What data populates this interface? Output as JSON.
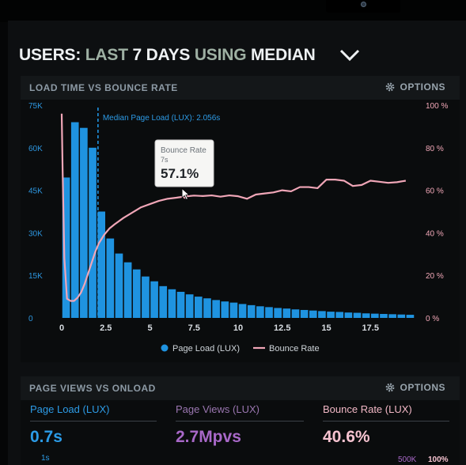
{
  "header": {
    "title_part1": "USERS:",
    "title_part2": "LAST",
    "title_part3": "7 DAYS",
    "title_part4": "USING",
    "title_part5": "MEDIAN"
  },
  "chart_panel": {
    "title": "LOAD TIME VS BOUNCE RATE",
    "options_label": "OPTIONS"
  },
  "tooltip": {
    "title": "Bounce Rate",
    "subtitle": "7s",
    "value": "57.1%"
  },
  "chart_data": {
    "type": "bar+line",
    "title": "LOAD TIME VS BOUNCE RATE",
    "xlabel": "",
    "ylabel": "",
    "x_ticks": [
      0,
      2.5,
      5,
      7.5,
      10,
      12.5,
      15,
      17.5
    ],
    "y_left_ticks": [
      "0",
      "15K",
      "30K",
      "45K",
      "60K",
      "75K"
    ],
    "y_left_range": [
      0,
      75000
    ],
    "y_right_ticks": [
      "0 %",
      "20 %",
      "40 %",
      "60 %",
      "80 %",
      "100 %"
    ],
    "y_right_range": [
      0,
      100
    ],
    "grid": false,
    "legend_position": "bottom",
    "annotation": {
      "x": 2.056,
      "label": "Median Page Load (LUX): 2.056s"
    },
    "series": [
      {
        "name": "Page Load (LUX)",
        "kind": "bar",
        "color": "#1f93e0",
        "bin_width": 0.5,
        "x": [
          0.25,
          0.75,
          1.25,
          1.75,
          2.25,
          2.75,
          3.25,
          3.75,
          4.25,
          4.75,
          5.25,
          5.75,
          6.25,
          6.75,
          7.25,
          7.75,
          8.25,
          8.75,
          9.25,
          9.75,
          10.25,
          10.75,
          11.25,
          11.75,
          12.25,
          12.75,
          13.25,
          13.75,
          14.25,
          14.75,
          15.25,
          15.75,
          16.25,
          16.75,
          17.25,
          17.75,
          18.25,
          18.75,
          19.25,
          19.75
        ],
        "values": [
          49500,
          69000,
          67000,
          60000,
          37500,
          28000,
          22700,
          19600,
          17100,
          14600,
          12900,
          11200,
          10100,
          9200,
          8300,
          7500,
          6900,
          6300,
          5800,
          5400,
          4900,
          4500,
          4100,
          3800,
          3500,
          3300,
          3000,
          2800,
          2600,
          2400,
          2200,
          2100,
          1900,
          1800,
          1600,
          1500,
          1400,
          1300,
          1200,
          1100
        ]
      },
      {
        "name": "Bounce Rate",
        "kind": "line",
        "color": "#f0a6b7",
        "x": [
          0,
          0.05,
          0.15,
          0.3,
          0.5,
          0.7,
          0.9,
          1.1,
          1.3,
          1.5,
          1.7,
          1.9,
          2.1,
          2.4,
          2.7,
          3.0,
          3.5,
          4.0,
          4.5,
          5.0,
          5.5,
          6.0,
          6.5,
          7.0,
          7.5,
          8.0,
          8.5,
          9.0,
          9.5,
          10.0,
          10.5,
          11.0,
          11.5,
          12.0,
          12.5,
          13.0,
          13.5,
          14.0,
          14.5,
          15.0,
          15.5,
          16.0,
          16.5,
          17.0,
          17.5,
          18.0,
          18.5,
          19.0,
          19.5
        ],
        "values": [
          96,
          70,
          28,
          9,
          8,
          8,
          9.5,
          12,
          16,
          21,
          26,
          31,
          35,
          39,
          42,
          44,
          47,
          49.5,
          52,
          53.5,
          55,
          56,
          56.5,
          57.1,
          57.5,
          57.3,
          57.6,
          57,
          57.6,
          57.2,
          56,
          58,
          58.5,
          59,
          60,
          59.5,
          61.5,
          61.5,
          61,
          65,
          65,
          64.5,
          62,
          62.5,
          64.5,
          64,
          63.5,
          63.8,
          64.5
        ]
      }
    ]
  },
  "bottom_panel": {
    "title": "PAGE VIEWS VS ONLOAD",
    "options_label": "OPTIONS"
  },
  "kpis": [
    {
      "label": "Page Load (LUX)",
      "value": "0.7s",
      "label_color": "#2d9be6",
      "value_color": "#2b9be6"
    },
    {
      "label": "Page Views (LUX)",
      "value": "2.7Mpvs",
      "label_color": "#9a76b0",
      "value_color": "#a868c8"
    },
    {
      "label": "Bounce Rate (LUX)",
      "value": "40.6%",
      "label_color": "#f2b8c6",
      "value_color": "#f6c3d0"
    }
  ],
  "footer": {
    "left": "1s",
    "right_a": "500K",
    "right_b": "100%"
  }
}
